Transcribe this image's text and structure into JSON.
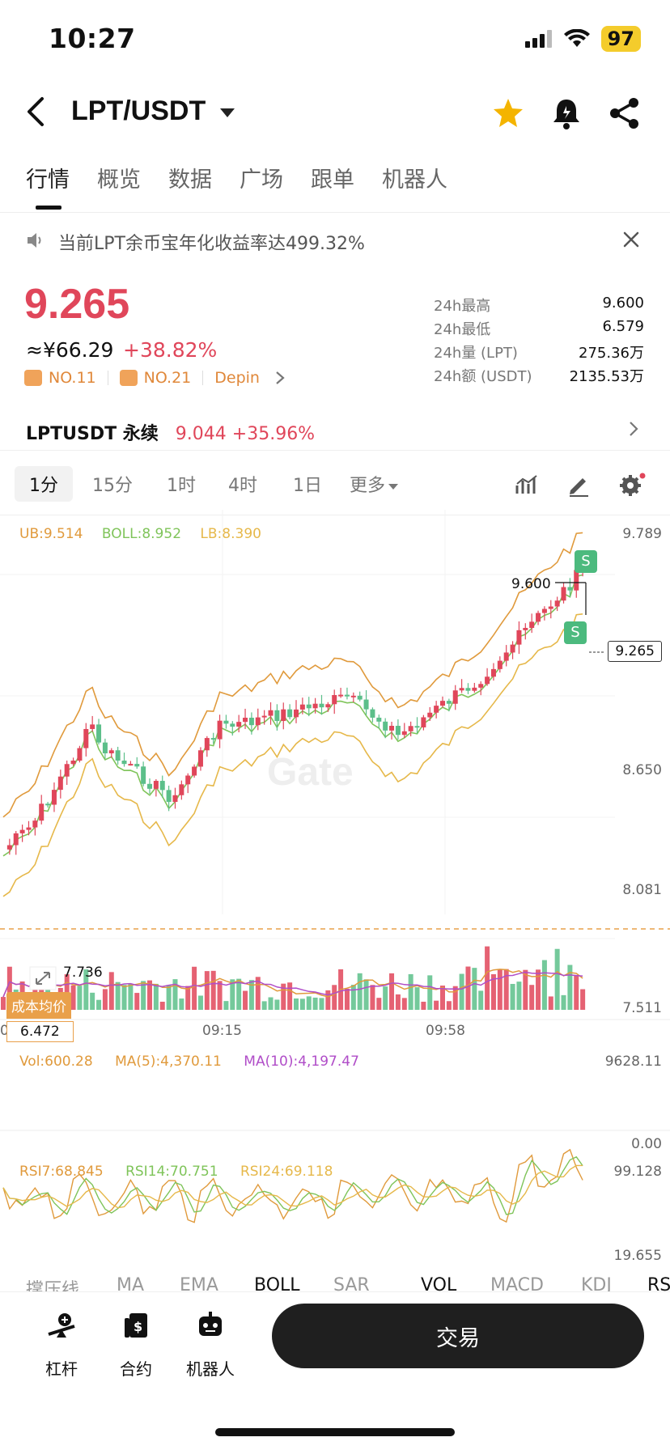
{
  "status_bar": {
    "time": "10:27",
    "battery": "97"
  },
  "header": {
    "pair": "LPT/USDT"
  },
  "tabs": [
    {
      "label": "行情"
    },
    {
      "label": "概览"
    },
    {
      "label": "数据"
    },
    {
      "label": "广场"
    },
    {
      "label": "跟单"
    },
    {
      "label": "机器人"
    }
  ],
  "notice": {
    "text": "当前LPT余币宝年化收益率达499.32%"
  },
  "price": {
    "last": "9.265",
    "fiat": "≈¥66.29",
    "change": "+38.82%",
    "rank1": "NO.11",
    "rank2": "NO.21",
    "tag": "Depin"
  },
  "stats": [
    {
      "k": "24h最高",
      "v": "9.600"
    },
    {
      "k": "24h最低",
      "v": "6.579"
    },
    {
      "k": "24h量 (LPT)",
      "v": "275.36万"
    },
    {
      "k": "24h额 (USDT)",
      "v": "2135.53万"
    }
  ],
  "perp": {
    "name": "LPTUSDT 永续",
    "value": "9.044 +35.96%"
  },
  "intervals": {
    "i1": "1分",
    "i2": "15分",
    "i3": "1时",
    "i4": "4时",
    "i5": "1日",
    "more": "更多"
  },
  "boll_legend": {
    "ub": "UB:9.514",
    "boll": "BOLL:8.952",
    "lb": "LB:8.390"
  },
  "price_axis": [
    "9.789",
    "8.650",
    "8.081",
    "7.511"
  ],
  "time_axis": [
    "09:15",
    "09:58"
  ],
  "time_axis_left": "0",
  "markers": {
    "high": "9.600",
    "low": "7.736",
    "last": "9.265",
    "signal": "S"
  },
  "cost": {
    "label": "成本均价",
    "value": "6.472"
  },
  "vol_legend": {
    "vol": "Vol:600.28",
    "ma5": "MA(5):4,370.11",
    "ma10": "MA(10):4,197.47"
  },
  "vol_axis": [
    "9628.11",
    "0.00"
  ],
  "rsi_legend": {
    "rsi7": "RSI7:68.845",
    "rsi14": "RSI14:70.751",
    "rsi24": "RSI24:69.118"
  },
  "rsi_axis": [
    "99.128",
    "19.655"
  ],
  "indicator_tabs": [
    "撑压线",
    "MA",
    "EMA",
    "BOLL",
    "SAR",
    "VOL",
    "MACD",
    "KDJ",
    "RS"
  ],
  "watermark": "Gate",
  "bottom_nav": {
    "leverage": "杠杆",
    "contract": "合约",
    "bot": "机器人",
    "trade": "交易"
  },
  "colors": {
    "up": "#e0465a",
    "down": "#5cbf8a",
    "accent": "#f4b400"
  }
}
